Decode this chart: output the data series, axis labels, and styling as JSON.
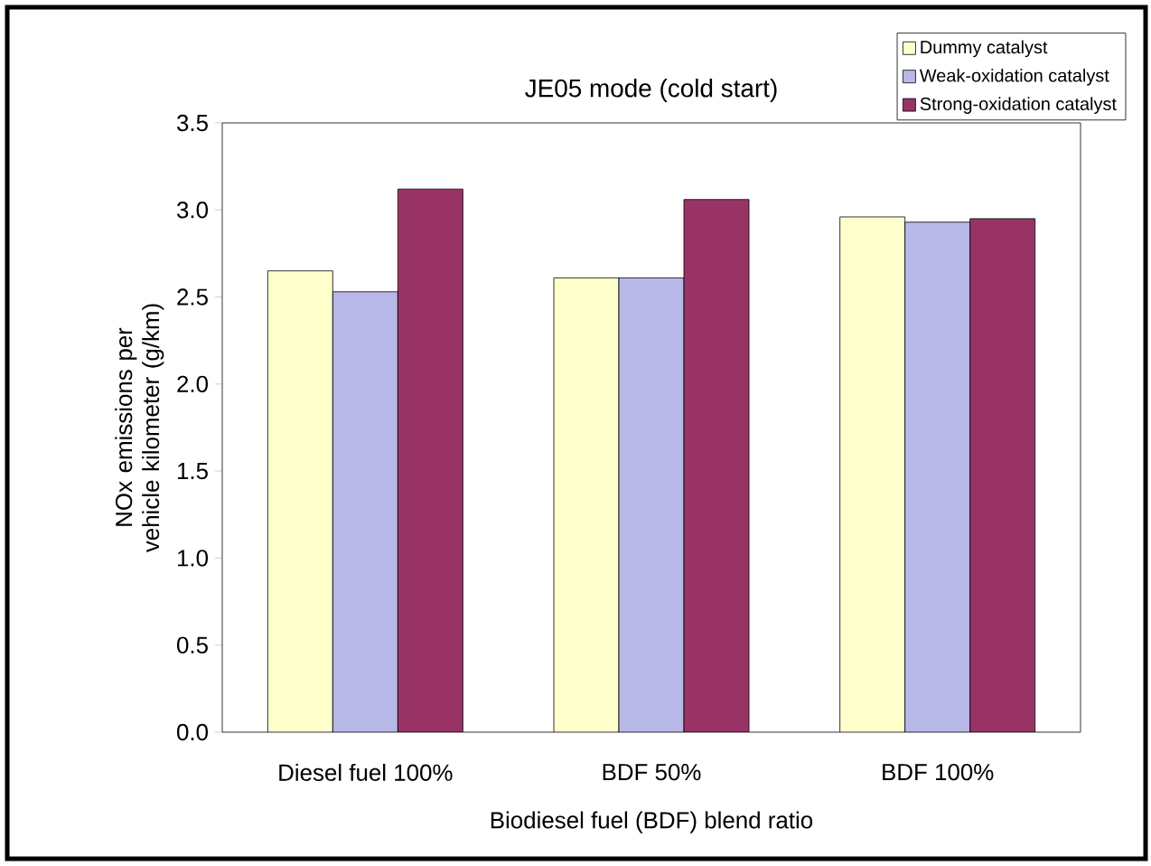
{
  "chart_data": {
    "type": "bar",
    "title": "JE05 mode (cold start)",
    "xlabel": "Biodiesel fuel (BDF) blend ratio",
    "ylabel": "NOx emissions per vehicle kilometer (g/km)",
    "categories": [
      "Diesel fuel 100%",
      "BDF 50%",
      "BDF 100%"
    ],
    "series": [
      {
        "name": "Dummy catalyst",
        "color": "#ffffcc",
        "values": [
          2.65,
          2.61,
          2.96
        ]
      },
      {
        "name": "Weak-oxidation catalyst",
        "color": "#b8b8e8",
        "values": [
          2.53,
          2.61,
          2.93
        ]
      },
      {
        "name": "Strong-oxidation catalyst",
        "color": "#993366",
        "values": [
          3.12,
          3.06,
          2.95
        ]
      }
    ],
    "ylim": [
      0,
      3.5
    ],
    "yticks": [
      {
        "value": 0,
        "label": "0.0"
      },
      {
        "value": 0.5,
        "label": "0.5"
      },
      {
        "value": 1,
        "label": "1.0"
      },
      {
        "value": 1.5,
        "label": "1.5"
      },
      {
        "value": 2,
        "label": "2.0"
      },
      {
        "value": 2.5,
        "label": "2.5"
      },
      {
        "value": 3,
        "label": "3.0"
      },
      {
        "value": 3.5,
        "label": "3.5"
      }
    ],
    "legend": "top right",
    "grid": false
  }
}
